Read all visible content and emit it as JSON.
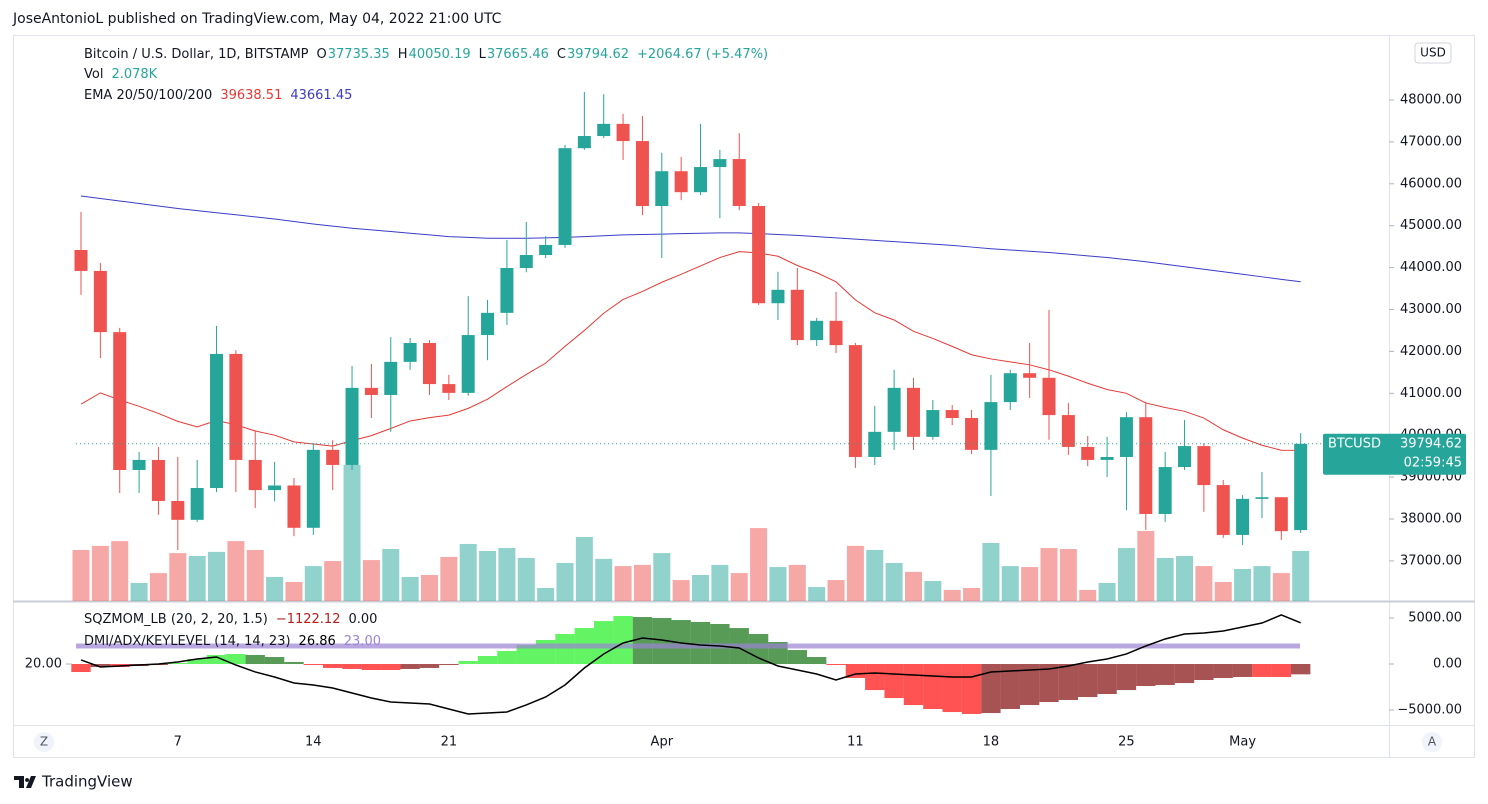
{
  "header": "JoseAntonioL published on TradingView.com, May 04, 2022 21:00 UTC",
  "footer": "TradingView",
  "buttons": [
    "Z",
    "A"
  ],
  "chart_data": [
    {
      "type": "candlestick",
      "title": "Bitcoin / U.S. Dollar, 1D, BITSTAMP",
      "categories": [
        null,
        null,
        null,
        null,
        null,
        "7",
        null,
        null,
        null,
        null,
        null,
        null,
        "14",
        null,
        null,
        null,
        null,
        null,
        null,
        "21",
        null,
        null,
        null,
        null,
        null,
        null,
        null,
        null,
        null,
        null,
        "Apr",
        null,
        null,
        null,
        null,
        null,
        null,
        null,
        null,
        null,
        "11",
        null,
        null,
        null,
        null,
        null,
        null,
        "18",
        null,
        null,
        null,
        null,
        null,
        null,
        "25",
        null,
        null,
        null,
        null,
        null,
        "May",
        null,
        null,
        null
      ],
      "open": [
        44420,
        43920,
        42460,
        39170,
        39410,
        38430,
        37980,
        38740,
        41940,
        39410,
        38690,
        38800,
        37790,
        39650,
        39290,
        41130,
        40960,
        41750,
        42200,
        41220,
        41010,
        42390,
        42920,
        43990,
        44300,
        44540,
        46850,
        47140,
        47430,
        47020,
        45470,
        46300,
        45800,
        46400,
        46590,
        45470,
        43150,
        43470,
        42270,
        42730,
        42150,
        39480,
        40080,
        41130,
        39960,
        40600,
        40410,
        39650,
        40790,
        41480,
        41370,
        40480,
        39720,
        39410,
        39480,
        40430,
        38120,
        39240,
        39740,
        38810,
        37620,
        38480,
        38520,
        37735.35
      ],
      "high": [
        45330,
        44110,
        42560,
        39600,
        39720,
        39480,
        39410,
        42610,
        42030,
        40120,
        39360,
        38980,
        39810,
        39880,
        41650,
        41700,
        42340,
        42320,
        42270,
        41440,
        43320,
        43230,
        44660,
        45090,
        44750,
        46930,
        48190,
        48140,
        47670,
        47620,
        46740,
        46640,
        47430,
        46810,
        47210,
        45540,
        43900,
        43990,
        42800,
        43420,
        42200,
        40700,
        41560,
        41370,
        40840,
        40720,
        40600,
        41440,
        41560,
        42200,
        42990,
        40770,
        39980,
        39960,
        40550,
        40790,
        39600,
        40360,
        39810,
        38930,
        38570,
        39120,
        38520,
        40050.19
      ],
      "low": [
        43350,
        41840,
        38620,
        38620,
        38100,
        37260,
        37930,
        38640,
        38640,
        38260,
        38420,
        37590,
        37620,
        38690,
        39170,
        40410,
        40080,
        41560,
        40960,
        40840,
        40940,
        41790,
        42630,
        43890,
        44230,
        44470,
        46810,
        47090,
        46570,
        45250,
        44230,
        45610,
        45730,
        45180,
        45370,
        43110,
        42750,
        42150,
        42130,
        41960,
        39220,
        39290,
        39650,
        39650,
        39890,
        40240,
        39550,
        38550,
        40600,
        40890,
        39890,
        39530,
        39260,
        39000,
        38210,
        37740,
        37930,
        39170,
        38170,
        37550,
        37380,
        38020,
        37500,
        37665.46
      ],
      "close": [
        43920,
        42460,
        39170,
        39410,
        38430,
        37980,
        38740,
        41940,
        39410,
        38690,
        38800,
        37790,
        39650,
        39290,
        41130,
        40960,
        41750,
        42200,
        41220,
        41010,
        42390,
        42920,
        43990,
        44300,
        44540,
        46850,
        47140,
        47430,
        47020,
        45470,
        46300,
        45800,
        46400,
        46590,
        45470,
        43150,
        43470,
        42270,
        42730,
        42150,
        39480,
        40080,
        41130,
        39960,
        40600,
        40410,
        39650,
        40790,
        41480,
        41370,
        40480,
        39720,
        39410,
        39480,
        40430,
        38120,
        39240,
        39740,
        38810,
        37620,
        38480,
        38520,
        37710,
        39794.62
      ],
      "ohlc_labels": [
        "O",
        "H",
        "L",
        "C"
      ],
      "change": "+2064.67 (+5.47%)",
      "up_color": "#26a69a",
      "down_color": "#ef5350",
      "volume": {
        "name": "Vol",
        "last_label": "2.078K",
        "values": [
          2120,
          2290,
          2490,
          750,
          1160,
          1990,
          1870,
          2040,
          2490,
          2120,
          1000,
          790,
          1450,
          1660,
          5650,
          1700,
          2160,
          1000,
          1080,
          1830,
          2370,
          2080,
          2200,
          1790,
          540,
          1580,
          2660,
          1750,
          1450,
          1500,
          1990,
          870,
          1080,
          1500,
          1160,
          3030,
          1410,
          1500,
          580,
          870,
          2290,
          2120,
          1580,
          1210,
          830,
          460,
          540,
          2410,
          1450,
          1410,
          2200,
          2160,
          460,
          750,
          2200,
          2910,
          1790,
          1870,
          1450,
          790,
          1330,
          1450,
          1160,
          2078
        ]
      },
      "ema_title": "EMA 20/50/100/200",
      "series": [
        {
          "color": "#e53935",
          "values": [
            40740,
            41010,
            40840,
            40690,
            40520,
            40330,
            40200,
            40350,
            40250,
            40100,
            40000,
            39840,
            39790,
            39740,
            39870,
            39990,
            40160,
            40340,
            40420,
            40480,
            40640,
            40860,
            41160,
            41450,
            41720,
            42120,
            42500,
            42910,
            43240,
            43430,
            43650,
            43840,
            44040,
            44240,
            44380,
            44350,
            44270,
            44050,
            43880,
            43660,
            43230,
            42920,
            42750,
            42480,
            42310,
            42120,
            41920,
            41820,
            41750,
            41680,
            41560,
            41410,
            41240,
            41090,
            41000,
            40770,
            40660,
            40570,
            40410,
            40130,
            39930,
            39760,
            39640,
            39638.51
          ]
        },
        {
          "color": "#3c3cc8",
          "values": [
            45710,
            45650,
            45590,
            45530,
            45470,
            45410,
            45360,
            45310,
            45260,
            45210,
            45160,
            45100,
            45040,
            44990,
            44940,
            44900,
            44860,
            44820,
            44780,
            44740,
            44720,
            44700,
            44700,
            44700,
            44710,
            44720,
            44740,
            44760,
            44780,
            44790,
            44800,
            44810,
            44820,
            44830,
            44830,
            44810,
            44790,
            44770,
            44740,
            44710,
            44680,
            44650,
            44620,
            44590,
            44560,
            44530,
            44490,
            44450,
            44420,
            44390,
            44360,
            44320,
            44280,
            44240,
            44190,
            44140,
            44080,
            44020,
            43960,
            43900,
            43840,
            43780,
            43720,
            43661.45
          ]
        }
      ],
      "ylim": [
        36043,
        49551
      ],
      "yticks": [
        {
          "value": 37000,
          "label": "37000.00"
        },
        {
          "value": 38000,
          "label": "38000.00"
        },
        {
          "value": 39000,
          "label": "39000.00"
        },
        {
          "value": 40000,
          "label": "40000.00"
        },
        {
          "value": 41000,
          "label": "41000.00"
        },
        {
          "value": 42000,
          "label": "42000.00"
        },
        {
          "value": 43000,
          "label": "43000.00"
        },
        {
          "value": 44000,
          "label": "44000.00"
        },
        {
          "value": 45000,
          "label": "45000.00"
        },
        {
          "value": 46000,
          "label": "46000.00"
        },
        {
          "value": 47000,
          "label": "47000.00"
        },
        {
          "value": 48000,
          "label": "48000.00"
        }
      ],
      "currency": "USD",
      "price_tag": {
        "symbol": "BTCUSD",
        "countdown": "02:59:45"
      }
    },
    {
      "type": "squeeze_momentum",
      "title": "SQZMOM_LB (20, 2, 20, 1.5)",
      "values": [
        -870,
        -330,
        -330,
        -220,
        -110,
        110,
        540,
        980,
        1090,
        980,
        760,
        220,
        -110,
        -430,
        -540,
        -650,
        -650,
        -540,
        -430,
        -110,
        330,
        870,
        1410,
        2070,
        2610,
        3260,
        3910,
        4670,
        5220,
        5110,
        5000,
        4780,
        4570,
        4350,
        3910,
        3260,
        2390,
        1520,
        760,
        -110,
        -1520,
        -2830,
        -3700,
        -4460,
        -4890,
        -5220,
        -5430,
        -5330,
        -4890,
        -4460,
        -4130,
        -3910,
        -3590,
        -3260,
        -2830,
        -2390,
        -2280,
        -2070,
        -1740,
        -1520,
        -1410,
        -1410,
        -1410,
        -1122.12
      ],
      "last_label": "−1122.12",
      "signal": {
        "value": 0,
        "label": "0.00"
      },
      "colors": {
        "up_rising": "#2ef02e",
        "up_falling": "#1f7a1f",
        "down_falling": "#ff1a1a",
        "down_rising": "#8b1a1a"
      },
      "ylim": [
        -6630,
        6850
      ],
      "yticks": [
        {
          "value": 5000,
          "label": "5000.00"
        },
        {
          "value": 0,
          "label": "0.00"
        },
        {
          "value": -5000,
          "label": "−5000.00"
        }
      ],
      "dmi_title": "DMI/ADX/KEYLEVEL (14, 14, 23)",
      "adx": {
        "color": "#000000",
        "axis": "y2",
        "values": [
          20.67,
          19.5,
          19.67,
          19.83,
          20,
          20.33,
          20.83,
          21.17,
          19.83,
          18.67,
          17.83,
          16.83,
          16.5,
          16,
          15.17,
          14.33,
          13.67,
          13.5,
          13.33,
          12.5,
          11.67,
          11.83,
          12,
          13.17,
          14.5,
          16.5,
          19.33,
          21.67,
          23.5,
          24.33,
          24,
          23.5,
          23.17,
          23,
          22.67,
          21,
          19.67,
          19,
          18.33,
          17.33,
          18.33,
          18.5,
          18.33,
          18.17,
          18,
          17.83,
          17.83,
          18.67,
          18.83,
          19,
          19.17,
          19.67,
          20.33,
          20.83,
          21.67,
          23,
          24.17,
          25,
          25.17,
          25.5,
          26.17,
          26.83,
          28.17,
          26.86
        ]
      },
      "key_level": {
        "value": 23,
        "label": "23.00",
        "color": "#9c84d4"
      },
      "y2lim": [
        9.83,
        30.5
      ],
      "y2ticks": [
        {
          "value": 20,
          "label": "20.00"
        }
      ]
    }
  ]
}
